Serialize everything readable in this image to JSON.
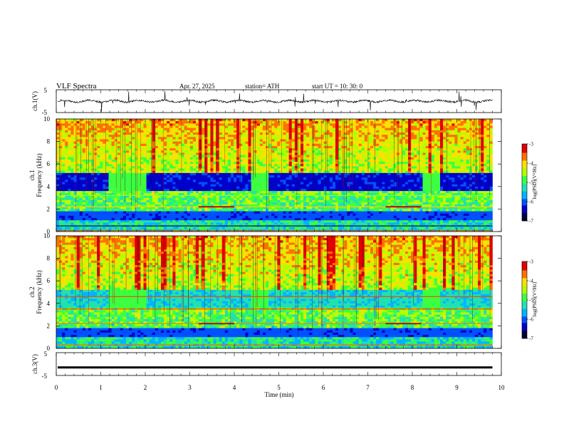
{
  "header": {
    "title": "VLF  Spectra",
    "date": "Apr. 27, 2025",
    "station": "station= ATH",
    "start_ut": "start  UT  =    10: 30: 0"
  },
  "chart_data": [
    {
      "type": "line",
      "name": "ch1-waveform",
      "ylabel": "ch.1(V)",
      "ylim": [
        -5,
        5
      ],
      "yticks": [
        "5",
        "-5"
      ],
      "xlim": [
        0,
        10
      ],
      "baseline_v": 0.0
    },
    {
      "type": "heatmap",
      "name": "ch1-spectrogram",
      "ylabel_line1": "ch.1",
      "ylabel_line2": "Frequency  (kHz)",
      "ylim": [
        0,
        10
      ],
      "yticks": [
        "0",
        "2",
        "4",
        "6",
        "8",
        "10"
      ],
      "xlim": [
        0,
        10
      ],
      "data_end_min": 9.8,
      "colorbar": {
        "label": "log(PSD)(V²/Hz)",
        "range": [
          -7,
          -3
        ],
        "ticks": [
          "-3",
          "-4",
          "-5",
          "-6",
          "-7"
        ]
      },
      "notable_bands_khz": [
        {
          "freq": 4.0,
          "note": "low-intensity band 3.5–5 kHz with gaps near 1.5, 4.5, 8.4 min"
        },
        {
          "freq": 2.2,
          "note": "enhanced line segments near 3.2–4.0 and 7.4–8.2 min"
        },
        {
          "freq": 0.5,
          "note": "strong low-frequency lines"
        }
      ]
    },
    {
      "type": "heatmap",
      "name": "ch2-spectrogram",
      "ylabel_line1": "ch.2",
      "ylabel_line2": "Frequency  (kHz)",
      "ylim": [
        0,
        10
      ],
      "yticks": [
        "0",
        "2",
        "4",
        "6",
        "8",
        "10"
      ],
      "xlim": [
        0,
        10
      ],
      "data_end_min": 9.8,
      "colorbar": {
        "label": "log(PSD)(V²/Hz)",
        "range": [
          -7,
          -3
        ],
        "ticks": [
          "-3",
          "-4",
          "-5",
          "-6",
          "-7"
        ]
      }
    },
    {
      "type": "line",
      "name": "ch3-voltage",
      "ylabel": "ch.3(V)",
      "ylim": [
        -5,
        5
      ],
      "yticks": [
        "5",
        "-5"
      ],
      "xlim": [
        0,
        10
      ],
      "xlabel": "Time  (min)",
      "xticks": [
        "0",
        "1",
        "2",
        "3",
        "4",
        "5",
        "6",
        "7",
        "8",
        "9",
        "10"
      ],
      "constant_v": -1.5
    }
  ],
  "colors": {
    "colormap": [
      "#00003a",
      "#0000c8",
      "#0050ff",
      "#00b4ff",
      "#22e0b0",
      "#3cff40",
      "#b4ff00",
      "#ffe000",
      "#ff7000",
      "#e00000",
      "#ffffff"
    ]
  }
}
